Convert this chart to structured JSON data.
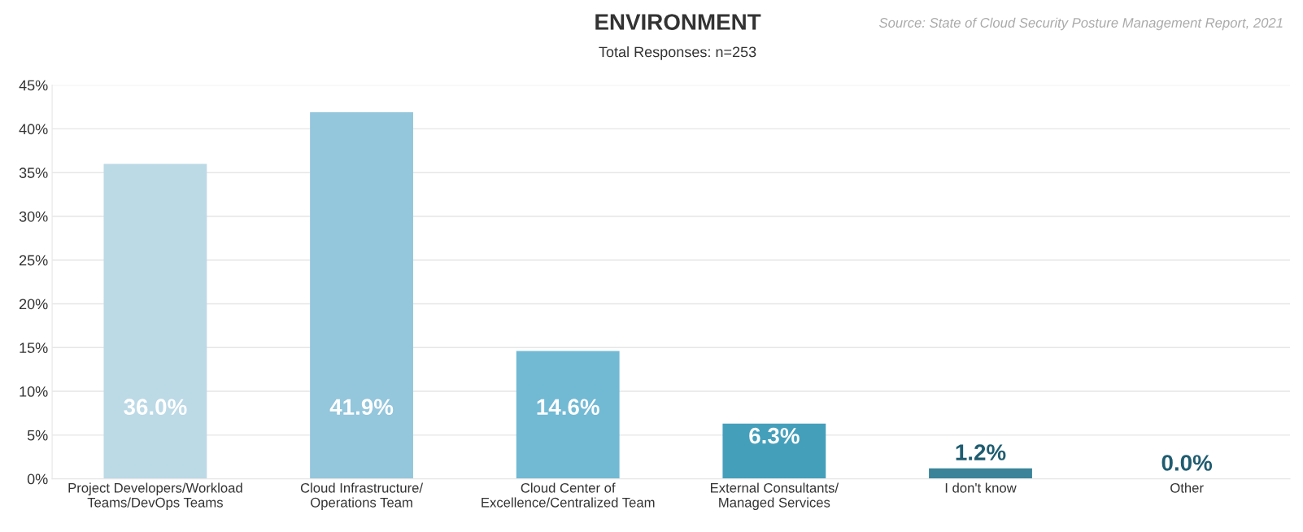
{
  "chart_data": {
    "type": "bar",
    "title": "ENVIRONMENT",
    "subtitle": "Total Responses: n=253",
    "annotations": [
      "Source: State of Cloud Security Posture Management Report, 2021"
    ],
    "categories": [
      "Project Developers/Workload\nTeams/DevOps Teams",
      "Cloud Infrastructure/\nOperations Team",
      "Cloud Center of\nExcellence/Centralized Team",
      "External Consultants/\nManaged Services",
      "I don't know",
      "Other"
    ],
    "values": [
      36.0,
      41.9,
      14.6,
      6.3,
      1.2,
      0.0
    ],
    "colors": [
      "#bcd9e6",
      "#94c6dc",
      "#72b9d4",
      "#449fbb",
      "#3a8399",
      "#e3eff4"
    ],
    "value_labels": [
      "36.0%",
      "41.9%",
      "14.6%",
      "6.3%",
      "1.2%",
      "0.0%"
    ],
    "ylim": [
      0,
      45
    ],
    "yticks": [
      {
        "value": 0,
        "label": "0%"
      },
      {
        "value": 5,
        "label": "5%"
      },
      {
        "value": 10,
        "label": "10%"
      },
      {
        "value": 15,
        "label": "15%"
      },
      {
        "value": 20,
        "label": "20%"
      },
      {
        "value": 25,
        "label": "25%"
      },
      {
        "value": 30,
        "label": "30%"
      },
      {
        "value": 35,
        "label": "35%"
      },
      {
        "value": 40,
        "label": "40%"
      },
      {
        "value": 45,
        "label": "45%"
      }
    ],
    "grid": "y",
    "legend": false
  }
}
